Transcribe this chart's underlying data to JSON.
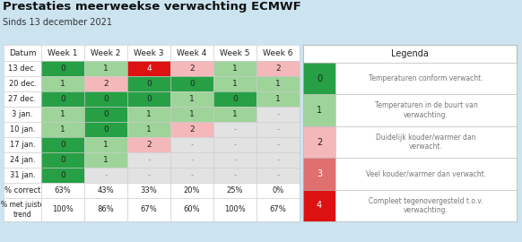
{
  "title": "Prestaties meerweekse verwachting ECMWF",
  "subtitle": "Sinds 13 december 2021",
  "background_color": "#cce4f0",
  "rows": [
    "13 dec.",
    "20 dec.",
    "27 dec.",
    "3 jan.",
    "10 jan.",
    "17 jan.",
    "24 jan.",
    "31 jan."
  ],
  "cols": [
    "Week 1",
    "Week 2",
    "Week 3",
    "Week 4",
    "Week 5",
    "Week 6"
  ],
  "data": [
    [
      0,
      1,
      4,
      2,
      1,
      2
    ],
    [
      1,
      2,
      0,
      0,
      1,
      1
    ],
    [
      0,
      0,
      0,
      1,
      0,
      1
    ],
    [
      1,
      0,
      1,
      1,
      1,
      null
    ],
    [
      1,
      0,
      1,
      2,
      null,
      null
    ],
    [
      0,
      1,
      2,
      null,
      null,
      null
    ],
    [
      0,
      1,
      null,
      null,
      null,
      null
    ],
    [
      0,
      null,
      null,
      null,
      null,
      null
    ]
  ],
  "pct_correct": [
    "63%",
    "43%",
    "33%",
    "20%",
    "25%",
    "0%"
  ],
  "pct_trend": [
    "100%",
    "86%",
    "67%",
    "60%",
    "100%",
    "67%"
  ],
  "color_map": {
    "0": "#27a045",
    "1": "#9ed49a",
    "2": "#f4b8bb",
    "3": "#e07070",
    "4": "#dd1111",
    "null": "#e2e2e2"
  },
  "legend_labels": [
    [
      "0",
      "Temperaturen conform verwacht."
    ],
    [
      "1",
      "Temperaturen in de buurt van\nverwachting."
    ],
    [
      "2",
      "Duidelijk kouder/warmer dan\nverwacht."
    ],
    [
      "3",
      "Veel kouder/warmer dan verwacht."
    ],
    [
      "4",
      "Compleet tegenovergesteld t.o.v.\nverwachting."
    ]
  ],
  "dash_color": "#999999",
  "border_color": "#bbbbbb",
  "text_color": "#555555",
  "header_text_color": "#333333"
}
